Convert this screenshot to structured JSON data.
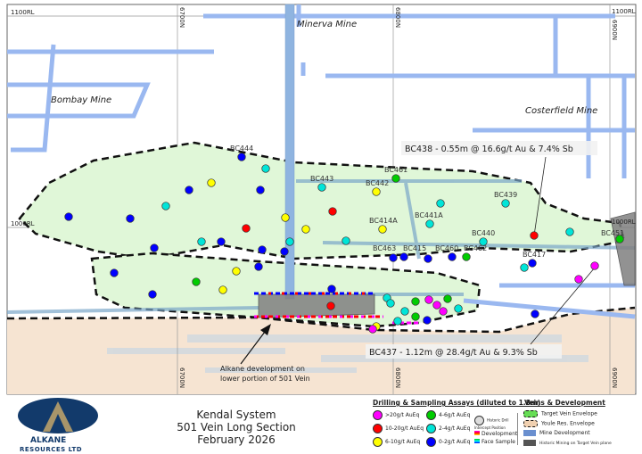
{
  "title": {
    "line1": "Kendal System",
    "line2": "501 Vein Long Section",
    "line3": "February 2026"
  },
  "logo": {
    "name": "ALKANE",
    "sub": "RESOURCES LTD",
    "colors": {
      "navy": "#123a6b",
      "gold": "#a8956a"
    }
  },
  "mines": {
    "minerva": "Minerva Mine",
    "bombay": "Bombay Mine",
    "costerfield": "Costerfield Mine"
  },
  "grid": {
    "rl_1100_left": "1100RL",
    "rl_1100_right": "1100RL",
    "rl_1000_left": "1000RL",
    "rl_1000_right": "1000RL",
    "n6700": "6700N",
    "n6800": "6800N",
    "n6900": "6900N"
  },
  "callouts": {
    "bc438": "BC438 - 0.55m @ 16.6g/t Au & 7.4% Sb",
    "bc437": "BC437 - 1.12m @ 28.4g/t Au & 9.3% Sb",
    "development": "Alkane development on lower portion of 501 Vein"
  },
  "holes": [
    "BC444",
    "BC443",
    "BC461",
    "BC442",
    "BC439",
    "BC414A",
    "BC441A",
    "BC440",
    "BC451",
    "BC463",
    "BC415",
    "BC460",
    "BC462",
    "BC417"
  ],
  "legend": {
    "assays_title": "Drilling & Sampling Assays (diluted to 1.8m)",
    "g20": ">20g/t AuEq",
    "g10": "10-20g/t AuEq",
    "g6": "6-10g/t AuEq",
    "g4": "4-6g/t AuEq",
    "g2": "2-4g/t AuEq",
    "g0": "0-2g/t AuEq",
    "historic": "Historic Drill Intercept Position",
    "dev": "Development",
    "face": "Face Sample",
    "veins_title": "Veins & Development",
    "target": "Target Vein Envelope",
    "youle": "Youle Res. Envelope",
    "minedev": "Mine Development",
    "historic_mining": "Historic Mining on Target Vein plane"
  },
  "colors": {
    "g20": "#ff00ff",
    "g10": "#ff0000",
    "g6": "#ffff00",
    "g4": "#00cc00",
    "g2": "#00e5d8",
    "g0": "#0000ff",
    "target": "#e0f7d8",
    "youle": "#f6e4d2",
    "minedev": "#9ab8f0",
    "historic": "#808080"
  }
}
